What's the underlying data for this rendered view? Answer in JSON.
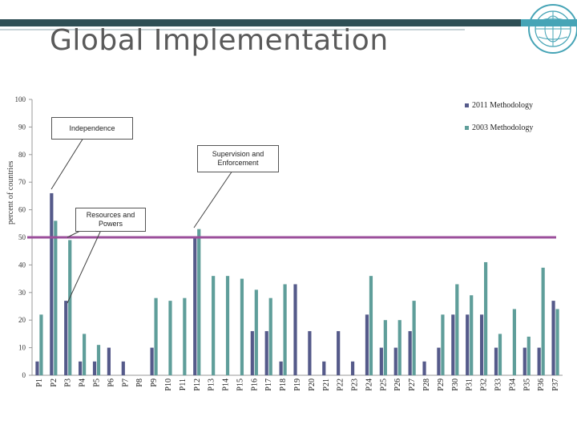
{
  "slide": {
    "title": "Global Implementation"
  },
  "icons": {
    "seal": "imf-seal-icon"
  },
  "colors": {
    "series_2011": "#555a8a",
    "series_2003": "#5f9e9a",
    "threshold_line": "#9b4f9b",
    "header_dark": "#2f4f55",
    "header_teal": "#46a4b6"
  },
  "callouts": {
    "independence": "Independence",
    "supervision": "Supervision and Enforcement",
    "resources": "Resources and Powers"
  },
  "chart_data": {
    "type": "bar",
    "ylabel": "percent of countries",
    "xlabel": "",
    "ylim": [
      0,
      100
    ],
    "yticks": [
      0,
      10,
      20,
      30,
      40,
      50,
      60,
      70,
      80,
      90,
      100
    ],
    "grid": false,
    "legend_placement": "top-right",
    "categories": [
      "P1",
      "P2",
      "P3",
      "P4",
      "P5",
      "P6",
      "P7",
      "P8",
      "P9",
      "P10",
      "P11",
      "P12",
      "P13",
      "P14",
      "P15",
      "P16",
      "P17",
      "P18",
      "P19",
      "P20",
      "P21",
      "P22",
      "P23",
      "P24",
      "P25",
      "P26",
      "P27",
      "P28",
      "P29",
      "P30",
      "P31",
      "P32",
      "P33",
      "P34",
      "P35",
      "P36",
      "P37"
    ],
    "series": [
      {
        "name": "2011 Methodology",
        "values": [
          5,
          66,
          27,
          5,
          5,
          10,
          5,
          0,
          10,
          0,
          0,
          50,
          0,
          0,
          0,
          16,
          16,
          5,
          33,
          16,
          5,
          16,
          5,
          22,
          10,
          10,
          16,
          5,
          10,
          22,
          22,
          22,
          10,
          0,
          10,
          10,
          27
        ]
      },
      {
        "name": "2003 Methodology",
        "values": [
          22,
          56,
          49,
          15,
          11,
          0,
          0,
          0,
          28,
          27,
          28,
          53,
          36,
          36,
          35,
          31,
          28,
          33,
          0,
          0,
          0,
          0,
          0,
          36,
          20,
          20,
          27,
          0,
          22,
          33,
          29,
          41,
          15,
          24,
          14,
          39,
          24
        ]
      }
    ],
    "reference_line": 50
  }
}
